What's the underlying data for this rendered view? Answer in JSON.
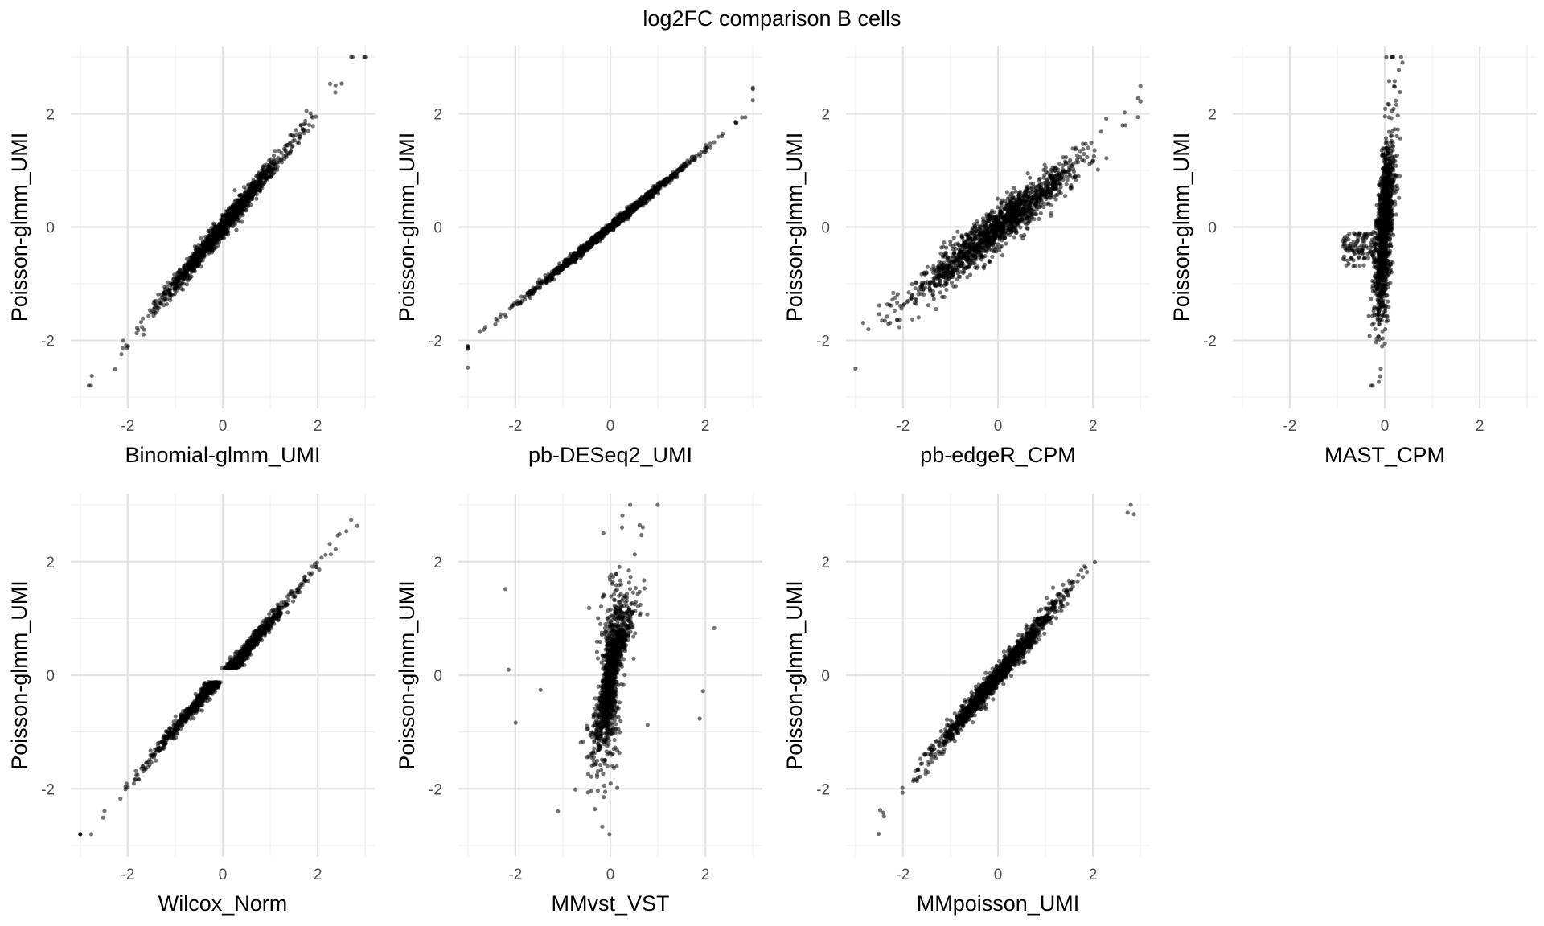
{
  "figure": {
    "title": "log2FC comparison B cells"
  },
  "chart_data": [
    {
      "type": "scatter",
      "xlabel": "Binomial-glmm_UMI",
      "ylabel": "Poisson-glmm_UMI",
      "xlim": [
        -3.2,
        3.2
      ],
      "ylim": [
        -3.2,
        3.2
      ],
      "xticks": [
        -2,
        0,
        2
      ],
      "yticks": [
        -2,
        0,
        2
      ],
      "grid": true,
      "n_points": 1500,
      "relation": "y ≈ x, tight"
    },
    {
      "type": "scatter",
      "xlabel": "pb-DESeq2_UMI",
      "ylabel": "Poisson-glmm_UMI",
      "xlim": [
        -3.2,
        3.2
      ],
      "ylim": [
        -3.2,
        3.2
      ],
      "xticks": [
        -2,
        0,
        2
      ],
      "yticks": [
        -2,
        0,
        2
      ],
      "grid": true,
      "n_points": 1500,
      "relation": "y ≈ 0.69x, very tight"
    },
    {
      "type": "scatter",
      "xlabel": "pb-edgeR_CPM",
      "ylabel": "Poisson-glmm_UMI",
      "xlim": [
        -3.2,
        3.2
      ],
      "ylim": [
        -3.2,
        3.2
      ],
      "xticks": [
        -2,
        0,
        2
      ],
      "yticks": [
        -2,
        0,
        2
      ],
      "grid": true,
      "n_points": 1500,
      "relation": "y ≈ 0.67x, wide"
    },
    {
      "type": "scatter",
      "xlabel": "MAST_CPM",
      "ylabel": "Poisson-glmm_UMI",
      "xlim": [
        -3.2,
        3.2
      ],
      "ylim": [
        -3.2,
        3.2
      ],
      "xticks": [
        -2,
        0,
        2
      ],
      "yticks": [
        -2,
        0,
        2
      ],
      "grid": true,
      "n_points": 1500,
      "relation": "x near 0, vertical spread"
    },
    {
      "type": "scatter",
      "xlabel": "Wilcox_Norm",
      "ylabel": "Poisson-glmm_UMI",
      "xlim": [
        -3.2,
        3.2
      ],
      "ylim": [
        -3.2,
        3.2
      ],
      "xticks": [
        -2,
        0,
        2
      ],
      "yticks": [
        -2,
        0,
        2
      ],
      "grid": true,
      "n_points": 1500,
      "relation": "y ≈ x, gap near 0"
    },
    {
      "type": "scatter",
      "xlabel": "MMvst_VST",
      "ylabel": "Poisson-glmm_UMI",
      "xlim": [
        -3.2,
        3.2
      ],
      "ylim": [
        -3.2,
        3.2
      ],
      "xticks": [
        -2,
        0,
        2
      ],
      "yticks": [
        -2,
        0,
        2
      ],
      "grid": true,
      "n_points": 1500,
      "relation": "steep S-shape near x=0"
    },
    {
      "type": "scatter",
      "xlabel": "MMpoisson_UMI",
      "ylabel": "Poisson-glmm_UMI",
      "xlim": [
        -3.2,
        3.2
      ],
      "ylim": [
        -3.2,
        3.2
      ],
      "xticks": [
        -2,
        0,
        2
      ],
      "yticks": [
        -2,
        0,
        2
      ],
      "grid": true,
      "n_points": 1500,
      "relation": "y ≈ x, tight"
    }
  ]
}
